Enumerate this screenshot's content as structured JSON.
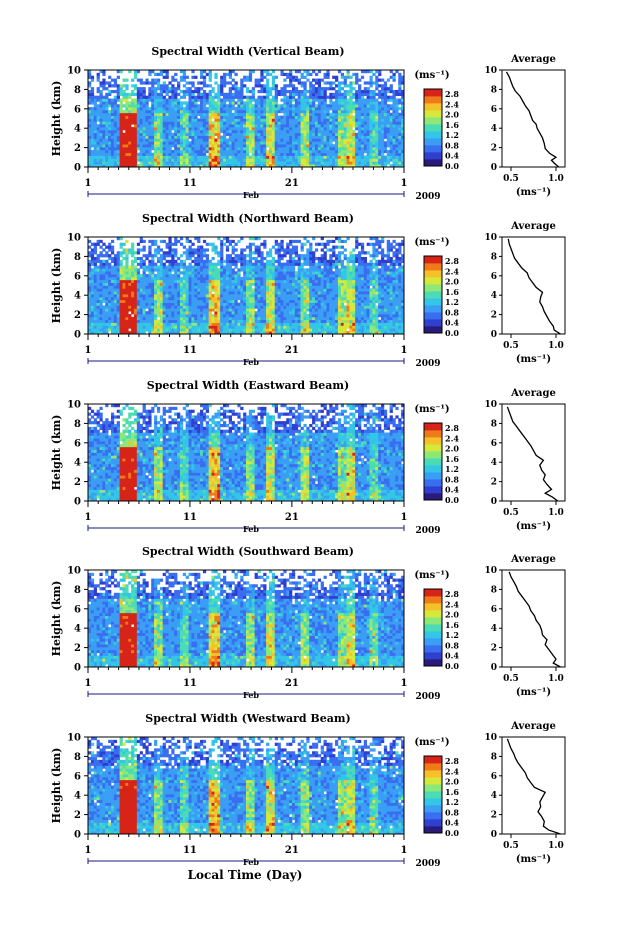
{
  "colors": {
    "colormap": [
      "#2a1a7a",
      "#2f3fcf",
      "#3a6ef0",
      "#3a9ef5",
      "#33c6e6",
      "#4cdcb4",
      "#8ee878",
      "#d6e83c",
      "#f6c028",
      "#f07a1a",
      "#d62418"
    ],
    "line": "#000000"
  },
  "figure": {
    "xlabel": "Local Time (Day)",
    "ylabel": "Height (km)",
    "cbar_unit": "(ms⁻¹)",
    "cbar_ticks": [
      "0.0",
      "0.4",
      "0.8",
      "1.2",
      "1.6",
      "2.0",
      "2.4",
      "2.8"
    ],
    "x_ticks": [
      "1",
      "11",
      "21",
      "1"
    ],
    "month": "Feb",
    "year": "2009",
    "avg_title": "Average",
    "avg_xlabel": "(ms⁻¹)"
  },
  "chart_data": [
    {
      "type": "heatmap",
      "title": "Spectral Width (Vertical Beam)",
      "ylabel": "Height (km)",
      "xlim_days": [
        1,
        32
      ],
      "ylim": [
        0,
        10
      ],
      "yticks": [
        "0",
        "2",
        "4",
        "6",
        "8",
        "10"
      ],
      "cbar_ticks": [
        "0.0",
        "0.4",
        "0.8",
        "1.2",
        "1.6",
        "2.0",
        "2.4",
        "2.8"
      ],
      "xticks": [
        "1",
        "11",
        "21",
        "1"
      ],
      "month": "Feb",
      "year": "2009",
      "avg_profile": {
        "title": "Average",
        "xticks": [
          "0.5",
          "1.0"
        ],
        "xlim": [
          0.4,
          1.1
        ],
        "ylim": [
          0,
          10
        ],
        "yticks": [
          "0",
          "2",
          "4",
          "6",
          "8",
          "10"
        ],
        "xlabel": "(ms⁻¹)",
        "points": [
          [
            1.03,
            0
          ],
          [
            0.98,
            0.4
          ],
          [
            0.95,
            0.7
          ],
          [
            1.0,
            1.0
          ],
          [
            0.93,
            1.4
          ],
          [
            0.88,
            1.9
          ],
          [
            0.87,
            2.4
          ],
          [
            0.85,
            3.0
          ],
          [
            0.82,
            3.5
          ],
          [
            0.79,
            4.0
          ],
          [
            0.78,
            4.4
          ],
          [
            0.74,
            4.8
          ],
          [
            0.72,
            5.3
          ],
          [
            0.7,
            5.8
          ],
          [
            0.66,
            6.3
          ],
          [
            0.63,
            6.8
          ],
          [
            0.6,
            7.3
          ],
          [
            0.55,
            7.8
          ],
          [
            0.52,
            8.3
          ],
          [
            0.5,
            8.8
          ],
          [
            0.48,
            9.3
          ],
          [
            0.45,
            9.8
          ]
        ]
      }
    },
    {
      "type": "heatmap",
      "title": "Spectral Width (Northward Beam)",
      "ylabel": "Height (km)",
      "xlim_days": [
        1,
        32
      ],
      "ylim": [
        0,
        10
      ],
      "yticks": [
        "0",
        "2",
        "4",
        "6",
        "8",
        "10"
      ],
      "cbar_ticks": [
        "0.0",
        "0.4",
        "0.8",
        "1.2",
        "1.6",
        "2.0",
        "2.4",
        "2.8"
      ],
      "xticks": [
        "1",
        "11",
        "21",
        "1"
      ],
      "month": "Feb",
      "year": "2009",
      "avg_profile": {
        "title": "Average",
        "xticks": [
          "0.5",
          "1.0"
        ],
        "xlim": [
          0.4,
          1.1
        ],
        "ylim": [
          0,
          10
        ],
        "yticks": [
          "0",
          "2",
          "4",
          "6",
          "8",
          "10"
        ],
        "xlabel": "(ms⁻¹)",
        "points": [
          [
            1.05,
            0
          ],
          [
            0.98,
            0.4
          ],
          [
            0.97,
            0.8
          ],
          [
            0.93,
            1.3
          ],
          [
            0.9,
            1.8
          ],
          [
            0.87,
            2.3
          ],
          [
            0.85,
            2.8
          ],
          [
            0.82,
            3.3
          ],
          [
            0.83,
            3.8
          ],
          [
            0.85,
            4.3
          ],
          [
            0.78,
            4.8
          ],
          [
            0.74,
            5.3
          ],
          [
            0.7,
            5.8
          ],
          [
            0.68,
            6.3
          ],
          [
            0.62,
            6.8
          ],
          [
            0.58,
            7.3
          ],
          [
            0.54,
            7.8
          ],
          [
            0.52,
            8.3
          ],
          [
            0.5,
            8.8
          ],
          [
            0.48,
            9.3
          ],
          [
            0.47,
            9.8
          ]
        ]
      }
    },
    {
      "type": "heatmap",
      "title": "Spectral Width (Eastward Beam)",
      "ylabel": "Height (km)",
      "xlim_days": [
        1,
        32
      ],
      "ylim": [
        0,
        10
      ],
      "yticks": [
        "0",
        "2",
        "4",
        "6",
        "8",
        "10"
      ],
      "cbar_ticks": [
        "0.0",
        "0.4",
        "0.8",
        "1.2",
        "1.6",
        "2.0",
        "2.4",
        "2.8"
      ],
      "xticks": [
        "1",
        "11",
        "21",
        "1"
      ],
      "month": "Feb",
      "year": "2009",
      "avg_profile": {
        "title": "Average",
        "xticks": [
          "0.5",
          "1.0"
        ],
        "xlim": [
          0.4,
          1.1
        ],
        "ylim": [
          0,
          10
        ],
        "yticks": [
          "0",
          "2",
          "4",
          "6",
          "8",
          "10"
        ],
        "xlabel": "(ms⁻¹)",
        "points": [
          [
            1.02,
            0
          ],
          [
            0.96,
            0.4
          ],
          [
            0.88,
            0.8
          ],
          [
            0.95,
            1.2
          ],
          [
            0.9,
            1.7
          ],
          [
            0.86,
            2.2
          ],
          [
            0.88,
            2.7
          ],
          [
            0.84,
            3.2
          ],
          [
            0.82,
            3.7
          ],
          [
            0.86,
            4.2
          ],
          [
            0.78,
            4.7
          ],
          [
            0.75,
            5.2
          ],
          [
            0.72,
            5.7
          ],
          [
            0.68,
            6.2
          ],
          [
            0.64,
            6.7
          ],
          [
            0.6,
            7.2
          ],
          [
            0.56,
            7.7
          ],
          [
            0.52,
            8.2
          ],
          [
            0.5,
            8.7
          ],
          [
            0.48,
            9.2
          ],
          [
            0.46,
            9.7
          ]
        ]
      }
    },
    {
      "type": "heatmap",
      "title": "Spectral Width (Southward Beam)",
      "ylabel": "Height (km)",
      "xlim_days": [
        1,
        32
      ],
      "ylim": [
        0,
        10
      ],
      "yticks": [
        "0",
        "2",
        "4",
        "6",
        "8",
        "10"
      ],
      "cbar_ticks": [
        "0.0",
        "0.4",
        "0.8",
        "1.2",
        "1.6",
        "2.0",
        "2.4",
        "2.8"
      ],
      "xticks": [
        "1",
        "11",
        "21",
        "1"
      ],
      "month": "Feb",
      "year": "2009",
      "avg_profile": {
        "title": "Average",
        "xticks": [
          "0.5",
          "1.0"
        ],
        "xlim": [
          0.4,
          1.1
        ],
        "ylim": [
          0,
          10
        ],
        "yticks": [
          "0",
          "2",
          "4",
          "6",
          "8",
          "10"
        ],
        "xlabel": "(ms⁻¹)",
        "points": [
          [
            1.05,
            0
          ],
          [
            0.97,
            0.4
          ],
          [
            1.0,
            0.8
          ],
          [
            0.96,
            1.3
          ],
          [
            0.92,
            1.8
          ],
          [
            0.88,
            2.3
          ],
          [
            0.9,
            2.8
          ],
          [
            0.85,
            3.3
          ],
          [
            0.84,
            3.8
          ],
          [
            0.82,
            4.3
          ],
          [
            0.78,
            4.8
          ],
          [
            0.76,
            5.3
          ],
          [
            0.72,
            5.8
          ],
          [
            0.7,
            6.3
          ],
          [
            0.66,
            6.8
          ],
          [
            0.62,
            7.3
          ],
          [
            0.58,
            7.8
          ],
          [
            0.56,
            8.3
          ],
          [
            0.53,
            8.8
          ],
          [
            0.5,
            9.3
          ],
          [
            0.48,
            9.8
          ]
        ]
      }
    },
    {
      "type": "heatmap",
      "title": "Spectral Width (Westward Beam)",
      "ylabel": "Height (km)",
      "xlim_days": [
        1,
        32
      ],
      "ylim": [
        0,
        10
      ],
      "yticks": [
        "0",
        "2",
        "4",
        "6",
        "8",
        "10"
      ],
      "cbar_ticks": [
        "0.0",
        "0.4",
        "0.8",
        "1.2",
        "1.6",
        "2.0",
        "2.4",
        "2.8"
      ],
      "xticks": [
        "1",
        "11",
        "21",
        "1"
      ],
      "month": "Feb",
      "year": "2009",
      "avg_profile": {
        "title": "Average",
        "xticks": [
          "0.5",
          "1.0"
        ],
        "xlim": [
          0.4,
          1.1
        ],
        "ylim": [
          0,
          10
        ],
        "yticks": [
          "0",
          "2",
          "4",
          "6",
          "8",
          "10"
        ],
        "xlabel": "(ms⁻¹)",
        "points": [
          [
            1.05,
            0
          ],
          [
            0.92,
            0.4
          ],
          [
            0.86,
            0.8
          ],
          [
            0.87,
            1.3
          ],
          [
            0.84,
            1.8
          ],
          [
            0.8,
            2.3
          ],
          [
            0.83,
            2.8
          ],
          [
            0.82,
            3.3
          ],
          [
            0.85,
            3.8
          ],
          [
            0.88,
            4.3
          ],
          [
            0.76,
            4.8
          ],
          [
            0.72,
            5.3
          ],
          [
            0.68,
            5.8
          ],
          [
            0.66,
            6.3
          ],
          [
            0.62,
            6.8
          ],
          [
            0.58,
            7.3
          ],
          [
            0.55,
            7.8
          ],
          [
            0.53,
            8.3
          ],
          [
            0.5,
            8.8
          ],
          [
            0.48,
            9.3
          ],
          [
            0.46,
            9.8
          ]
        ]
      }
    }
  ]
}
